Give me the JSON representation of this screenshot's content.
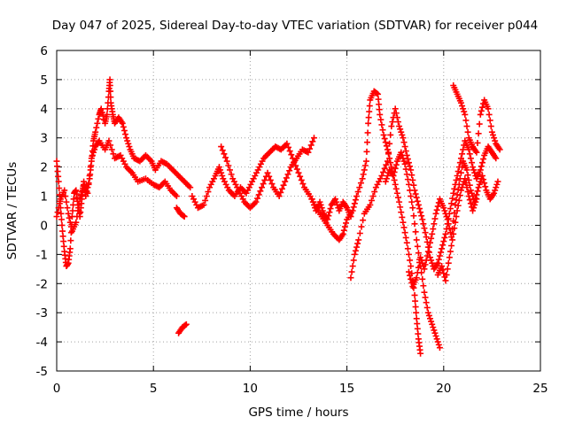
{
  "chart_data": {
    "type": "scatter",
    "title": "Day 047 of 2025, Sidereal Day-to-day VTEC variation (SDTVAR) for receiver p044",
    "xlabel": "GPS time / hours",
    "ylabel": "SDTVAR / TECUs",
    "xlim": [
      0,
      25
    ],
    "ylim": [
      -5,
      6
    ],
    "xticks": [
      "0",
      "5",
      "10",
      "15",
      "20",
      "25"
    ],
    "yticks": [
      "-5",
      "-4",
      "-3",
      "-2",
      "-1",
      "0",
      "1",
      "2",
      "3",
      "4",
      "5",
      "6"
    ],
    "grid": true,
    "marker": "+",
    "marker_color": "#ff0000",
    "series": [
      {
        "name": "trace-1",
        "points": [
          [
            0,
            2.2
          ],
          [
            0.1,
            1.5
          ],
          [
            0.2,
            0.6
          ],
          [
            0.3,
            -0.2
          ],
          [
            0.4,
            -0.9
          ],
          [
            0.5,
            -1.4
          ],
          [
            0.6,
            -1.3
          ],
          [
            0.7,
            -0.8
          ],
          [
            0.8,
            0.3
          ],
          [
            0.9,
            1.1
          ],
          [
            1.0,
            1.2
          ],
          [
            1.1,
            0.7
          ],
          [
            1.2,
            0.3
          ],
          [
            1.3,
            0.9
          ],
          [
            1.4,
            1.5
          ],
          [
            1.5,
            1.0
          ],
          [
            1.7,
            1.6
          ],
          [
            1.8,
            2.2
          ],
          [
            1.9,
            2.9
          ],
          [
            2.0,
            3.2
          ],
          [
            2.2,
            3.8
          ],
          [
            2.3,
            4.0
          ],
          [
            2.5,
            3.5
          ],
          [
            2.6,
            3.8
          ],
          [
            2.7,
            4.6
          ],
          [
            2.75,
            5.0
          ],
          [
            2.8,
            4.2
          ],
          [
            2.9,
            3.8
          ],
          [
            3.0,
            3.5
          ],
          [
            3.2,
            3.7
          ],
          [
            3.4,
            3.5
          ],
          [
            3.6,
            3.0
          ],
          [
            3.8,
            2.6
          ],
          [
            4.0,
            2.3
          ],
          [
            4.3,
            2.2
          ],
          [
            4.6,
            2.4
          ],
          [
            4.9,
            2.2
          ],
          [
            5.1,
            1.9
          ],
          [
            5.4,
            2.2
          ],
          [
            5.7,
            2.1
          ],
          [
            6.0,
            1.9
          ],
          [
            6.3,
            1.7
          ],
          [
            6.6,
            1.5
          ],
          [
            6.9,
            1.3
          ]
        ]
      },
      {
        "name": "trace-2",
        "points": [
          [
            0.0,
            0.3
          ],
          [
            0.2,
            0.9
          ],
          [
            0.4,
            1.2
          ],
          [
            0.6,
            0.4
          ],
          [
            0.8,
            -0.2
          ],
          [
            1.0,
            0.1
          ],
          [
            1.2,
            0.9
          ],
          [
            1.4,
            1.4
          ],
          [
            1.6,
            1.1
          ],
          [
            1.8,
            2.3
          ],
          [
            2.0,
            2.7
          ],
          [
            2.2,
            2.9
          ],
          [
            2.5,
            2.6
          ],
          [
            2.7,
            2.9
          ],
          [
            3.0,
            2.3
          ],
          [
            3.3,
            2.4
          ],
          [
            3.6,
            2.0
          ],
          [
            3.9,
            1.8
          ],
          [
            4.2,
            1.5
          ],
          [
            4.6,
            1.6
          ],
          [
            5.0,
            1.4
          ],
          [
            5.3,
            1.3
          ],
          [
            5.6,
            1.5
          ],
          [
            5.9,
            1.2
          ],
          [
            6.2,
            1.0
          ]
        ]
      },
      {
        "name": "trace-3",
        "points": [
          [
            6.2,
            0.6
          ],
          [
            6.4,
            0.4
          ],
          [
            6.6,
            0.3
          ]
        ]
      },
      {
        "name": "trace-4",
        "points": [
          [
            6.3,
            -3.7
          ],
          [
            6.5,
            -3.5
          ],
          [
            6.7,
            -3.4
          ]
        ]
      },
      {
        "name": "trace-5",
        "points": [
          [
            7.0,
            1.0
          ],
          [
            7.3,
            0.6
          ],
          [
            7.6,
            0.7
          ],
          [
            7.9,
            1.3
          ],
          [
            8.2,
            1.7
          ],
          [
            8.4,
            2.0
          ],
          [
            8.6,
            1.6
          ],
          [
            8.9,
            1.2
          ],
          [
            9.2,
            1.0
          ],
          [
            9.5,
            1.3
          ],
          [
            9.8,
            1.1
          ],
          [
            10.1,
            1.5
          ],
          [
            10.4,
            1.9
          ],
          [
            10.7,
            2.3
          ],
          [
            11.0,
            2.5
          ],
          [
            11.3,
            2.7
          ],
          [
            11.6,
            2.6
          ],
          [
            11.9,
            2.8
          ],
          [
            12.2,
            2.3
          ],
          [
            12.5,
            1.8
          ],
          [
            12.8,
            1.3
          ],
          [
            13.1,
            1.0
          ],
          [
            13.4,
            0.6
          ],
          [
            13.7,
            0.3
          ],
          [
            14.0,
            0.0
          ],
          [
            14.3,
            -0.3
          ],
          [
            14.6,
            -0.5
          ],
          [
            14.8,
            -0.3
          ],
          [
            15.0,
            0.2
          ],
          [
            15.3,
            0.5
          ],
          [
            15.5,
            1.0
          ],
          [
            15.8,
            1.6
          ],
          [
            16.0,
            2.2
          ],
          [
            16.1,
            3.5
          ],
          [
            16.2,
            4.3
          ],
          [
            16.4,
            4.6
          ],
          [
            16.6,
            4.5
          ],
          [
            16.7,
            3.8
          ],
          [
            16.9,
            3.1
          ],
          [
            17.1,
            2.6
          ],
          [
            17.3,
            2.0
          ],
          [
            17.5,
            1.4
          ],
          [
            17.7,
            0.8
          ],
          [
            17.9,
            0.1
          ],
          [
            18.1,
            -0.6
          ],
          [
            18.3,
            -1.4
          ],
          [
            18.5,
            -2.4
          ],
          [
            18.6,
            -3.2
          ],
          [
            18.7,
            -3.9
          ],
          [
            18.8,
            -4.4
          ]
        ]
      },
      {
        "name": "trace-6",
        "points": [
          [
            8.5,
            2.7
          ],
          [
            8.8,
            2.2
          ],
          [
            9.1,
            1.6
          ],
          [
            9.4,
            1.2
          ],
          [
            9.7,
            0.8
          ],
          [
            10.0,
            0.6
          ],
          [
            10.3,
            0.8
          ],
          [
            10.6,
            1.3
          ],
          [
            10.9,
            1.8
          ],
          [
            11.2,
            1.3
          ],
          [
            11.5,
            1.0
          ],
          [
            11.8,
            1.5
          ],
          [
            12.1,
            2.0
          ],
          [
            12.4,
            2.3
          ],
          [
            12.7,
            2.6
          ],
          [
            13.0,
            2.5
          ],
          [
            13.3,
            3.0
          ]
        ]
      },
      {
        "name": "trace-7",
        "points": [
          [
            15.2,
            -1.8
          ],
          [
            15.4,
            -1.0
          ],
          [
            15.6,
            -0.5
          ],
          [
            15.9,
            0.4
          ],
          [
            16.2,
            0.7
          ],
          [
            16.5,
            1.3
          ],
          [
            16.8,
            1.7
          ],
          [
            17.1,
            2.2
          ],
          [
            17.3,
            3.4
          ],
          [
            17.5,
            4.0
          ],
          [
            17.7,
            3.4
          ],
          [
            17.9,
            3.0
          ],
          [
            18.1,
            2.4
          ],
          [
            18.3,
            1.9
          ],
          [
            18.5,
            1.2
          ],
          [
            18.7,
            0.7
          ],
          [
            18.9,
            0.2
          ],
          [
            19.1,
            -0.4
          ],
          [
            19.3,
            -1.1
          ],
          [
            19.5,
            -1.5
          ],
          [
            19.7,
            -1.3
          ],
          [
            19.9,
            -0.8
          ],
          [
            20.1,
            -0.3
          ],
          [
            20.3,
            0.4
          ],
          [
            20.5,
            1.1
          ],
          [
            20.7,
            1.7
          ],
          [
            20.9,
            2.3
          ],
          [
            21.1,
            2.9
          ],
          [
            21.3,
            2.6
          ],
          [
            21.5,
            2.0
          ],
          [
            21.7,
            1.6
          ],
          [
            21.9,
            1.9
          ],
          [
            22.1,
            2.4
          ],
          [
            22.3,
            2.7
          ],
          [
            22.5,
            2.5
          ],
          [
            22.7,
            2.3
          ]
        ]
      },
      {
        "name": "trace-8",
        "points": [
          [
            17.0,
            1.5
          ],
          [
            17.2,
            1.9
          ],
          [
            17.4,
            1.7
          ],
          [
            17.6,
            2.2
          ],
          [
            17.8,
            2.5
          ],
          [
            18.0,
            2.1
          ],
          [
            18.2,
            1.4
          ],
          [
            18.4,
            0.6
          ],
          [
            18.6,
            -0.5
          ],
          [
            18.8,
            -1.4
          ],
          [
            19.0,
            -2.3
          ],
          [
            19.2,
            -3.0
          ],
          [
            19.4,
            -3.4
          ],
          [
            19.6,
            -3.8
          ],
          [
            19.8,
            -4.2
          ]
        ]
      },
      {
        "name": "trace-9",
        "points": [
          [
            18.2,
            -1.6
          ],
          [
            18.4,
            -2.1
          ],
          [
            18.6,
            -1.8
          ],
          [
            18.8,
            -1.1
          ],
          [
            19.0,
            -1.5
          ],
          [
            19.2,
            -0.9
          ],
          [
            19.4,
            -0.3
          ],
          [
            19.6,
            0.4
          ],
          [
            19.8,
            0.9
          ],
          [
            20.0,
            0.6
          ],
          [
            20.2,
            0.2
          ],
          [
            20.4,
            -0.4
          ],
          [
            20.6,
            0.7
          ],
          [
            20.8,
            1.4
          ],
          [
            21.0,
            2.2
          ],
          [
            21.2,
            1.9
          ],
          [
            21.4,
            1.2
          ],
          [
            21.6,
            0.8
          ],
          [
            21.8,
            1.3
          ],
          [
            22.0,
            1.7
          ],
          [
            22.2,
            1.2
          ],
          [
            22.4,
            0.9
          ],
          [
            22.6,
            1.1
          ],
          [
            22.8,
            1.5
          ]
        ]
      },
      {
        "name": "trace-10",
        "points": [
          [
            19.7,
            -1.7
          ],
          [
            19.9,
            -1.4
          ],
          [
            20.1,
            -1.9
          ],
          [
            20.3,
            -1.1
          ],
          [
            20.5,
            -0.3
          ],
          [
            20.7,
            0.5
          ],
          [
            20.9,
            1.2
          ],
          [
            21.1,
            1.6
          ],
          [
            21.3,
            1.0
          ],
          [
            21.5,
            0.5
          ],
          [
            21.7,
            0.9
          ]
        ]
      },
      {
        "name": "trace-11",
        "points": [
          [
            20.5,
            4.8
          ],
          [
            20.7,
            4.5
          ],
          [
            20.9,
            4.2
          ],
          [
            21.1,
            3.8
          ],
          [
            21.3,
            3.0
          ],
          [
            21.5,
            2.7
          ],
          [
            21.7,
            2.5
          ],
          [
            21.9,
            3.8
          ],
          [
            22.1,
            4.3
          ],
          [
            22.3,
            4.0
          ],
          [
            22.5,
            3.2
          ],
          [
            22.7,
            2.8
          ],
          [
            22.9,
            2.6
          ]
        ]
      },
      {
        "name": "trace-12",
        "points": [
          [
            13.2,
            0.9
          ],
          [
            13.4,
            0.5
          ],
          [
            13.6,
            0.8
          ],
          [
            13.8,
            0.4
          ],
          [
            14.0,
            0.2
          ],
          [
            14.2,
            0.7
          ],
          [
            14.4,
            0.9
          ],
          [
            14.6,
            0.5
          ],
          [
            14.8,
            0.8
          ],
          [
            15.0,
            0.6
          ],
          [
            15.2,
            0.3
          ]
        ]
      }
    ]
  }
}
